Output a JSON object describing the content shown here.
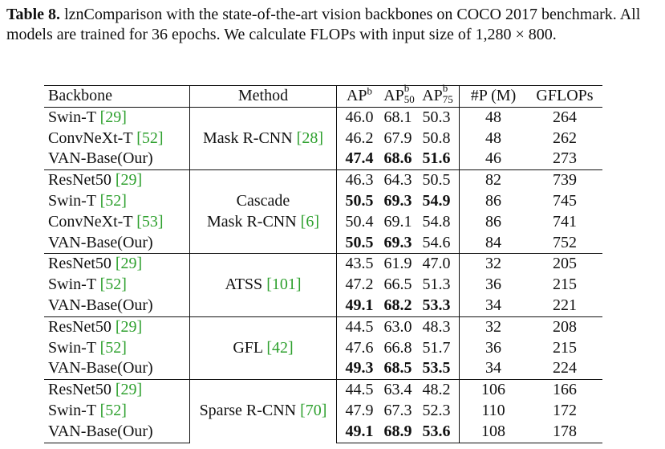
{
  "caption": {
    "label": "Table 8.",
    "text": " lznComparison with the state-of-the-art vision backbones on COCO 2017 benchmark. All models are trained for 36 epochs. We calculate FLOPs with input size of 1,280 × 800."
  },
  "table": {
    "headers": {
      "backbone": "Backbone",
      "method": "Method",
      "ap": "AP",
      "ap_sup": "b",
      "ap50": "AP",
      "ap50_sup": "b",
      "ap50_sub": "50",
      "ap75": "AP",
      "ap75_sup": "b",
      "ap75_sub": "75",
      "params": "#P (M)",
      "gflops": "GFLOPs"
    },
    "groups": [
      {
        "method_lines": [
          "Mask R-CNN "
        ],
        "method_ref": "[28]",
        "rows": [
          {
            "backbone": "Swin-T ",
            "ref": "[29]",
            "ap": "46.0",
            "ap50": "68.1",
            "ap75": "50.3",
            "params": "48",
            "gflops": "264",
            "bold": [
              false,
              false,
              false
            ]
          },
          {
            "backbone": "ConvNeXt-T ",
            "ref": "[52]",
            "ap": "46.2",
            "ap50": "67.9",
            "ap75": "50.8",
            "params": "48",
            "gflops": "262",
            "bold": [
              false,
              false,
              false
            ]
          },
          {
            "backbone": "VAN-Base(Our)",
            "ref": "",
            "ap": "47.4",
            "ap50": "68.6",
            "ap75": "51.6",
            "params": "46",
            "gflops": "273",
            "bold": [
              true,
              true,
              true
            ]
          }
        ]
      },
      {
        "method_lines": [
          "Cascade",
          "Mask R-CNN "
        ],
        "method_ref": "[6]",
        "rows": [
          {
            "backbone": "ResNet50 ",
            "ref": "[29]",
            "ap": "46.3",
            "ap50": "64.3",
            "ap75": "50.5",
            "params": "82",
            "gflops": "739",
            "bold": [
              false,
              false,
              false
            ]
          },
          {
            "backbone": "Swin-T ",
            "ref": "[52]",
            "ap": "50.5",
            "ap50": "69.3",
            "ap75": "54.9",
            "params": "86",
            "gflops": "745",
            "bold": [
              true,
              true,
              true
            ]
          },
          {
            "backbone": "ConvNeXt-T ",
            "ref": "[53]",
            "ap": "50.4",
            "ap50": "69.1",
            "ap75": "54.8",
            "params": "86",
            "gflops": "741",
            "bold": [
              false,
              false,
              false
            ]
          },
          {
            "backbone": "VAN-Base(Our)",
            "ref": "",
            "ap": "50.5",
            "ap50": "69.3",
            "ap75": "54.6",
            "params": "84",
            "gflops": "752",
            "bold": [
              true,
              true,
              false
            ]
          }
        ]
      },
      {
        "method_lines": [
          "ATSS "
        ],
        "method_ref": "[101]",
        "rows": [
          {
            "backbone": "ResNet50 ",
            "ref": "[29]",
            "ap": "43.5",
            "ap50": "61.9",
            "ap75": "47.0",
            "params": "32",
            "gflops": "205",
            "bold": [
              false,
              false,
              false
            ]
          },
          {
            "backbone": "Swin-T ",
            "ref": "[52]",
            "ap": "47.2",
            "ap50": "66.5",
            "ap75": "51.3",
            "params": "36",
            "gflops": "215",
            "bold": [
              false,
              false,
              false
            ]
          },
          {
            "backbone": "VAN-Base(Our)",
            "ref": "",
            "ap": "49.1",
            "ap50": "68.2",
            "ap75": "53.3",
            "params": "34",
            "gflops": "221",
            "bold": [
              true,
              true,
              true
            ]
          }
        ]
      },
      {
        "method_lines": [
          "GFL "
        ],
        "method_ref": "[42]",
        "rows": [
          {
            "backbone": "ResNet50 ",
            "ref": "[29]",
            "ap": "44.5",
            "ap50": "63.0",
            "ap75": "48.3",
            "params": "32",
            "gflops": "208",
            "bold": [
              false,
              false,
              false
            ]
          },
          {
            "backbone": "Swin-T ",
            "ref": "[52]",
            "ap": "47.6",
            "ap50": "66.8",
            "ap75": "51.7",
            "params": "36",
            "gflops": "215",
            "bold": [
              false,
              false,
              false
            ]
          },
          {
            "backbone": "VAN-Base(Our)",
            "ref": "",
            "ap": "49.3",
            "ap50": "68.5",
            "ap75": "53.5",
            "params": "34",
            "gflops": "224",
            "bold": [
              true,
              true,
              true
            ]
          }
        ]
      },
      {
        "method_lines": [
          "Sparse R-CNN "
        ],
        "method_ref": "[70]",
        "rows": [
          {
            "backbone": "ResNet50 ",
            "ref": "[29]",
            "ap": "44.5",
            "ap50": "63.4",
            "ap75": "48.2",
            "params": "106",
            "gflops": "166",
            "bold": [
              false,
              false,
              false
            ]
          },
          {
            "backbone": "Swin-T ",
            "ref": "[52]",
            "ap": "47.9",
            "ap50": "67.3",
            "ap75": "52.3",
            "params": "110",
            "gflops": "172",
            "bold": [
              false,
              false,
              false
            ]
          },
          {
            "backbone": "VAN-Base(Our)",
            "ref": "",
            "ap": "49.1",
            "ap50": "68.9",
            "ap75": "53.6",
            "params": "108",
            "gflops": "178",
            "bold": [
              true,
              true,
              true
            ]
          }
        ]
      }
    ]
  },
  "colors": {
    "text": "#111111",
    "citation": "#2ea02e"
  }
}
